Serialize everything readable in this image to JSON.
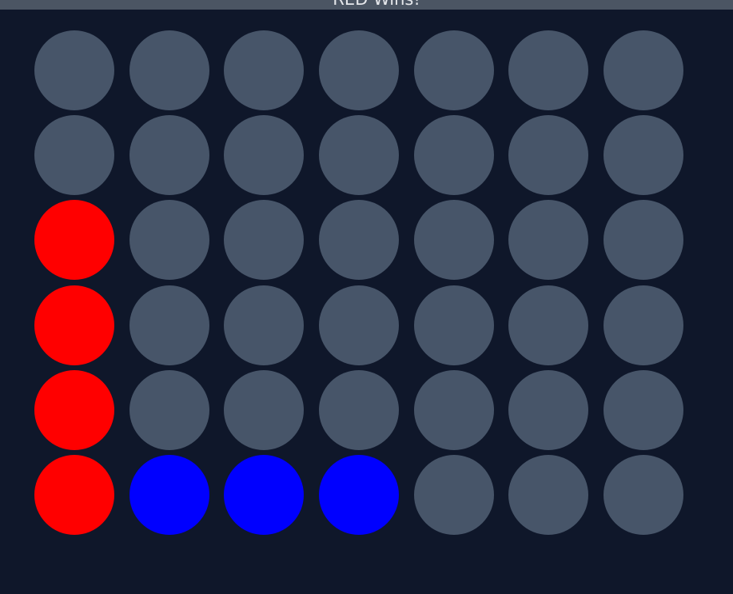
{
  "status": {
    "message": "RED Wins!"
  },
  "board": {
    "rows": 6,
    "columns": 7,
    "grid": [
      [
        "empty",
        "empty",
        "empty",
        "empty",
        "empty",
        "empty",
        "empty"
      ],
      [
        "empty",
        "empty",
        "empty",
        "empty",
        "empty",
        "empty",
        "empty"
      ],
      [
        "red",
        "empty",
        "empty",
        "empty",
        "empty",
        "empty",
        "empty"
      ],
      [
        "red",
        "empty",
        "empty",
        "empty",
        "empty",
        "empty",
        "empty"
      ],
      [
        "red",
        "empty",
        "empty",
        "empty",
        "empty",
        "empty",
        "empty"
      ],
      [
        "red",
        "blue",
        "blue",
        "blue",
        "empty",
        "empty",
        "empty"
      ]
    ]
  },
  "colors": {
    "background": "#0f172a",
    "status_bar": "#4b5563",
    "empty_slot": "#475569",
    "red_disc": "#ff0000",
    "blue_disc": "#0000ff"
  }
}
